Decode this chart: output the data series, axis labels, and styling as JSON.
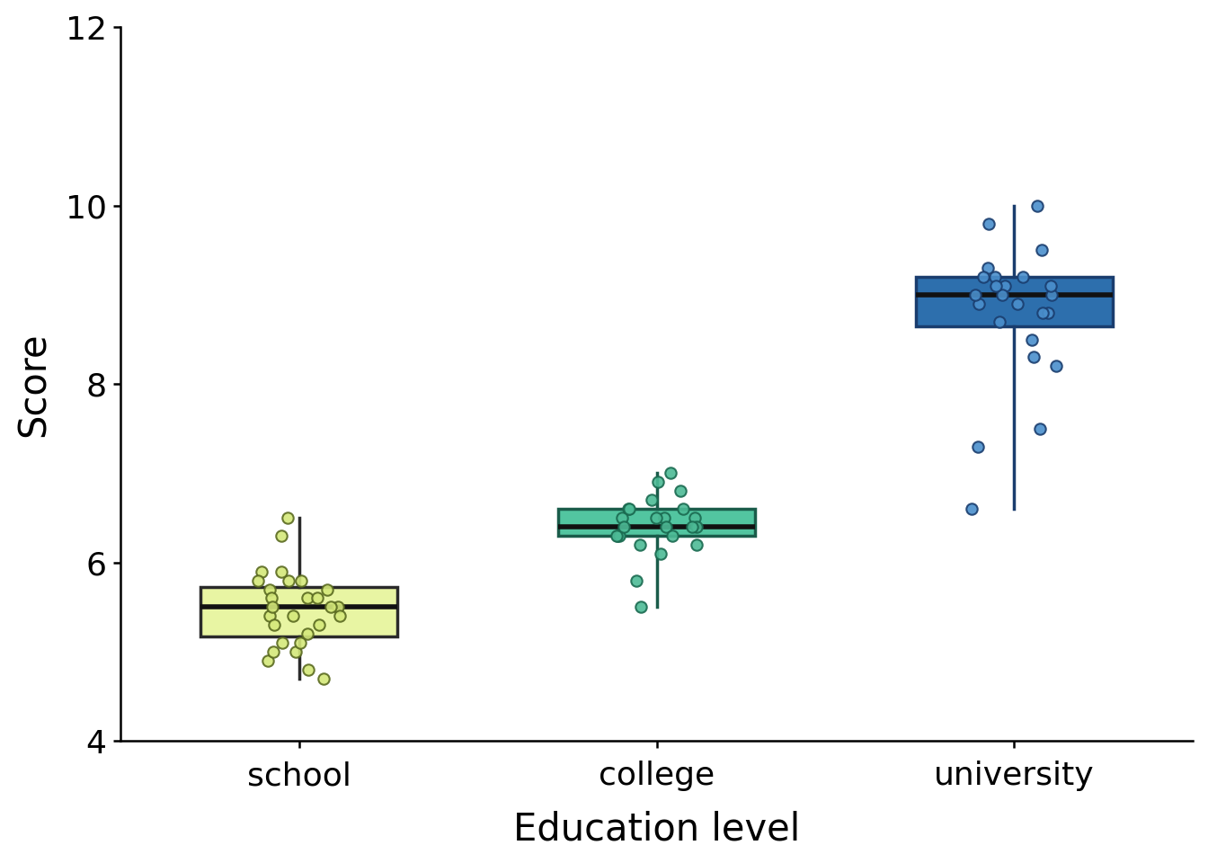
{
  "categories": [
    "school",
    "college",
    "university"
  ],
  "xlabel": "Education level",
  "ylabel": "Score",
  "ylim": [
    4,
    12
  ],
  "yticks": [
    4,
    6,
    8,
    10,
    12
  ],
  "box_colors": [
    "#e8f5a3",
    "#52c5a0",
    "#2d6fad"
  ],
  "box_edge_colors": [
    "#2a2a2a",
    "#1a5c4a",
    "#1a3d6e"
  ],
  "dot_face_colors": [
    "#d4e87a",
    "#4dbb96",
    "#4a8fcc"
  ],
  "dot_edge_colors": [
    "#5a6a20",
    "#1a6a50",
    "#1a3d6e"
  ],
  "median_color": "#111111",
  "whisker_color": "#111111",
  "box_width": 0.55,
  "linewidth": 2.5,
  "median_linewidth": 4.0,
  "dot_size": 80,
  "dot_alpha": 0.9,
  "school_data": [
    5.8,
    5.5,
    5.3,
    5.6,
    5.7,
    5.4,
    5.9,
    5.5,
    5.2,
    5.6,
    5.8,
    5.4,
    5.7,
    5.3,
    5.6,
    5.5,
    5.1,
    5.8,
    5.4,
    5.9,
    4.8,
    4.9,
    6.3,
    6.5,
    5.0,
    4.7,
    5.0,
    5.1
  ],
  "college_data": [
    6.5,
    6.3,
    6.4,
    6.6,
    6.3,
    6.5,
    6.4,
    6.6,
    6.2,
    6.5,
    6.3,
    6.7,
    6.4,
    6.5,
    6.3,
    6.4,
    5.8,
    7.0,
    5.5,
    6.9,
    6.1,
    6.6,
    6.2,
    6.8
  ],
  "university_data": [
    9.0,
    8.8,
    9.2,
    9.1,
    8.9,
    9.3,
    9.0,
    8.7,
    9.1,
    9.2,
    8.8,
    9.0,
    9.1,
    8.9,
    9.2,
    7.5,
    7.3,
    8.2,
    10.0,
    9.8,
    6.6,
    9.5,
    8.5,
    8.3
  ],
  "label_fontsize": 30,
  "tick_fontsize": 26,
  "background_color": "#ffffff",
  "jitter_seed": 42,
  "jitter_amount": 0.12
}
